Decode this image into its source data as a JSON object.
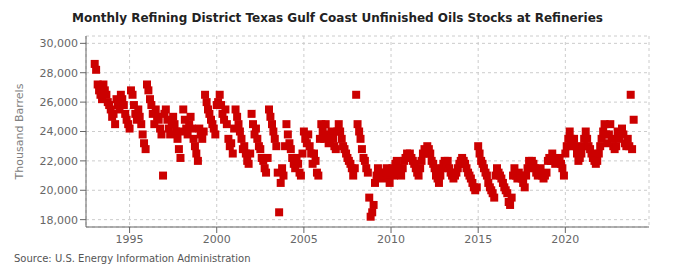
{
  "chart_data": {
    "type": "scatter",
    "title": "Monthly Refining District Texas Gulf Coast Unfinished Oils Stocks at Refineries",
    "y_label": "Thousand Barrels",
    "annotations": [
      "Source: U.S. Energy Information Administration"
    ],
    "color": "#cc0000",
    "marker": "square",
    "grid": true,
    "xlim": [
      1992.5,
      2024.8
    ],
    "xticks": [
      1995,
      2000,
      2005,
      2010,
      2015,
      2020
    ],
    "ylim": [
      17500,
      30500
    ],
    "yticks": [
      {
        "value": 18000,
        "label": "18,000"
      },
      {
        "value": 20000,
        "label": "20,000"
      },
      {
        "value": 22000,
        "label": "22,000"
      },
      {
        "value": 24000,
        "label": "24,000"
      },
      {
        "value": 26000,
        "label": "26,000"
      },
      {
        "value": 28000,
        "label": "28,000"
      },
      {
        "value": 30000,
        "label": "30,000"
      }
    ],
    "x": [
      1993.0,
      1993.08,
      1993.17,
      1993.25,
      1993.33,
      1993.42,
      1993.5,
      1993.58,
      1993.67,
      1993.75,
      1993.83,
      1993.92,
      1994.0,
      1994.08,
      1994.17,
      1994.25,
      1994.33,
      1994.42,
      1994.5,
      1994.58,
      1994.67,
      1994.75,
      1994.83,
      1994.92,
      1995.0,
      1995.08,
      1995.17,
      1995.25,
      1995.33,
      1995.42,
      1995.5,
      1995.58,
      1995.67,
      1995.75,
      1995.83,
      1995.92,
      1996.0,
      1996.08,
      1996.17,
      1996.25,
      1996.33,
      1996.42,
      1996.5,
      1996.58,
      1996.67,
      1996.75,
      1996.83,
      1996.92,
      1997.0,
      1997.08,
      1997.17,
      1997.25,
      1997.33,
      1997.42,
      1997.5,
      1997.58,
      1997.67,
      1997.75,
      1997.83,
      1997.92,
      1998.0,
      1998.08,
      1998.17,
      1998.25,
      1998.33,
      1998.42,
      1998.5,
      1998.58,
      1998.67,
      1998.75,
      1998.83,
      1998.92,
      1999.0,
      1999.08,
      1999.17,
      1999.25,
      1999.33,
      1999.42,
      1999.5,
      1999.58,
      1999.67,
      1999.75,
      1999.83,
      1999.92,
      2000.0,
      2000.08,
      2000.17,
      2000.25,
      2000.33,
      2000.42,
      2000.5,
      2000.58,
      2000.67,
      2000.75,
      2000.83,
      2000.92,
      2001.0,
      2001.08,
      2001.17,
      2001.25,
      2001.33,
      2001.42,
      2001.5,
      2001.58,
      2001.67,
      2001.75,
      2001.83,
      2001.92,
      2002.0,
      2002.08,
      2002.17,
      2002.25,
      2002.33,
      2002.42,
      2002.5,
      2002.58,
      2002.67,
      2002.75,
      2002.83,
      2002.92,
      2003.0,
      2003.08,
      2003.17,
      2003.25,
      2003.33,
      2003.42,
      2003.5,
      2003.58,
      2003.67,
      2003.75,
      2003.83,
      2003.92,
      2004.0,
      2004.08,
      2004.17,
      2004.25,
      2004.33,
      2004.42,
      2004.5,
      2004.58,
      2004.67,
      2004.75,
      2004.83,
      2004.92,
      2005.0,
      2005.08,
      2005.17,
      2005.25,
      2005.33,
      2005.42,
      2005.5,
      2005.58,
      2005.67,
      2005.75,
      2005.83,
      2005.92,
      2006.0,
      2006.08,
      2006.17,
      2006.25,
      2006.33,
      2006.42,
      2006.5,
      2006.58,
      2006.67,
      2006.75,
      2006.83,
      2006.92,
      2007.0,
      2007.08,
      2007.17,
      2007.25,
      2007.33,
      2007.42,
      2007.5,
      2007.58,
      2007.67,
      2007.75,
      2007.83,
      2007.92,
      2008.0,
      2008.08,
      2008.17,
      2008.25,
      2008.33,
      2008.42,
      2008.5,
      2008.58,
      2008.67,
      2008.75,
      2008.83,
      2008.92,
      2009.0,
      2009.08,
      2009.17,
      2009.25,
      2009.33,
      2009.42,
      2009.5,
      2009.58,
      2009.67,
      2009.75,
      2009.83,
      2009.92,
      2010.0,
      2010.08,
      2010.17,
      2010.25,
      2010.33,
      2010.42,
      2010.5,
      2010.58,
      2010.67,
      2010.75,
      2010.83,
      2010.92,
      2011.0,
      2011.08,
      2011.17,
      2011.25,
      2011.33,
      2011.42,
      2011.5,
      2011.58,
      2011.67,
      2011.75,
      2011.83,
      2011.92,
      2012.0,
      2012.08,
      2012.17,
      2012.25,
      2012.33,
      2012.42,
      2012.5,
      2012.58,
      2012.67,
      2012.75,
      2012.83,
      2012.92,
      2013.0,
      2013.08,
      2013.17,
      2013.25,
      2013.33,
      2013.42,
      2013.5,
      2013.58,
      2013.67,
      2013.75,
      2013.83,
      2013.92,
      2014.0,
      2014.08,
      2014.17,
      2014.25,
      2014.33,
      2014.42,
      2014.5,
      2014.58,
      2014.67,
      2014.75,
      2014.83,
      2014.92,
      2015.0,
      2015.08,
      2015.17,
      2015.25,
      2015.33,
      2015.42,
      2015.5,
      2015.58,
      2015.67,
      2015.75,
      2015.83,
      2015.92,
      2016.0,
      2016.08,
      2016.17,
      2016.25,
      2016.33,
      2016.42,
      2016.5,
      2016.58,
      2016.67,
      2016.75,
      2016.83,
      2016.92,
      2017.0,
      2017.08,
      2017.17,
      2017.25,
      2017.33,
      2017.42,
      2017.5,
      2017.58,
      2017.67,
      2017.75,
      2017.83,
      2017.92,
      2018.0,
      2018.08,
      2018.17,
      2018.25,
      2018.33,
      2018.42,
      2018.5,
      2018.58,
      2018.67,
      2018.75,
      2018.83,
      2018.92,
      2019.0,
      2019.08,
      2019.17,
      2019.25,
      2019.33,
      2019.42,
      2019.5,
      2019.58,
      2019.67,
      2019.75,
      2019.83,
      2019.92,
      2020.0,
      2020.08,
      2020.17,
      2020.25,
      2020.33,
      2020.42,
      2020.5,
      2020.58,
      2020.67,
      2020.75,
      2020.83,
      2020.92,
      2021.0,
      2021.08,
      2021.17,
      2021.25,
      2021.33,
      2021.42,
      2021.5,
      2021.58,
      2021.67,
      2021.75,
      2021.83,
      2021.92,
      2022.0,
      2022.08,
      2022.17,
      2022.25,
      2022.33,
      2022.42,
      2022.5,
      2022.58,
      2022.67,
      2022.75,
      2022.83,
      2022.92,
      2023.0,
      2023.08,
      2023.17,
      2023.25,
      2023.33,
      2023.42,
      2023.5,
      2023.58,
      2023.67,
      2023.75,
      2023.83,
      2023.92
    ],
    "values": [
      28600,
      28200,
      27200,
      26800,
      26500,
      26200,
      27200,
      26800,
      26500,
      26000,
      25800,
      25500,
      25000,
      25200,
      24500,
      26200,
      25800,
      25500,
      26500,
      26200,
      25800,
      25200,
      24800,
      24500,
      24200,
      26800,
      26500,
      25800,
      25200,
      24800,
      25500,
      25000,
      24500,
      23800,
      23200,
      22800,
      27200,
      26800,
      26200,
      25800,
      25200,
      24500,
      25500,
      25000,
      24800,
      24200,
      23800,
      21000,
      25200,
      25500,
      24800,
      24200,
      23800,
      24500,
      25000,
      24500,
      24000,
      23500,
      22800,
      22200,
      24000,
      25500,
      24800,
      24200,
      23800,
      24500,
      25000,
      24200,
      23500,
      23000,
      22500,
      22000,
      24200,
      23800,
      23500,
      24000,
      26500,
      26000,
      25500,
      25200,
      24800,
      24500,
      24200,
      23800,
      25800,
      26000,
      26500,
      25800,
      25200,
      24800,
      25500,
      24500,
      23500,
      23000,
      23200,
      22500,
      24200,
      25500,
      25000,
      24500,
      24000,
      23500,
      22800,
      23000,
      22500,
      22000,
      21800,
      22500,
      25200,
      24500,
      23800,
      24200,
      23500,
      23000,
      22800,
      22200,
      22000,
      21500,
      21200,
      22200,
      25500,
      25000,
      24500,
      24000,
      23500,
      23000,
      21200,
      18500,
      20500,
      21500,
      21000,
      23000,
      24500,
      23800,
      23200,
      22800,
      22200,
      21800,
      21500,
      22200,
      21800,
      21200,
      21000,
      22500,
      24000,
      23500,
      23200,
      23800,
      23000,
      22500,
      21800,
      22500,
      22000,
      21200,
      21000,
      23500,
      24500,
      24000,
      23500,
      24500,
      23800,
      23200,
      23500,
      24000,
      23500,
      23000,
      22800,
      24000,
      24500,
      24000,
      23500,
      23000,
      22800,
      22500,
      22200,
      22000,
      21800,
      21500,
      21000,
      21500,
      26500,
      24500,
      24000,
      23500,
      22800,
      22200,
      22000,
      21500,
      21200,
      19500,
      18200,
      18500,
      19000,
      20500,
      21000,
      21500,
      21200,
      21000,
      20800,
      21000,
      21200,
      21500,
      21000,
      20500,
      21200,
      21500,
      21000,
      21800,
      22000,
      21500,
      21200,
      21000,
      21500,
      22000,
      22200,
      22500,
      22200,
      22500,
      22200,
      22000,
      21800,
      21500,
      21200,
      21000,
      21500,
      22000,
      22500,
      22800,
      22500,
      23000,
      22800,
      22500,
      22000,
      21800,
      21500,
      21000,
      20800,
      20500,
      21000,
      21500,
      21800,
      22000,
      21800,
      22000,
      21500,
      21200,
      21000,
      20800,
      21000,
      21200,
      21500,
      21800,
      22000,
      22200,
      22000,
      21800,
      21500,
      21200,
      21000,
      20800,
      20500,
      20200,
      20000,
      20200,
      23000,
      22500,
      22000,
      21800,
      21500,
      21200,
      21000,
      20500,
      20200,
      20000,
      19800,
      19500,
      21000,
      21500,
      21200,
      21000,
      20800,
      20500,
      20200,
      20000,
      19800,
      19200,
      19000,
      19500,
      21000,
      21500,
      21000,
      20800,
      21200,
      21000,
      20800,
      20500,
      20200,
      21000,
      21500,
      22000,
      21800,
      22000,
      21800,
      21500,
      21200,
      21000,
      21200,
      21500,
      21000,
      20800,
      21000,
      21200,
      22000,
      22200,
      22000,
      22500,
      22000,
      21800,
      22000,
      22200,
      22000,
      21800,
      21500,
      21000,
      22500,
      23000,
      23500,
      24000,
      23500,
      23000,
      23500,
      23000,
      22500,
      22000,
      22200,
      22500,
      23000,
      23500,
      24000,
      23500,
      23000,
      22800,
      22500,
      22200,
      22000,
      21800,
      22000,
      22500,
      23000,
      23500,
      24000,
      24500,
      23800,
      23200,
      23800,
      24500,
      23500,
      23000,
      22800,
      23000,
      24000,
      23500,
      23800,
      24200,
      23800,
      23200,
      23000,
      23500,
      23000,
      26500,
      22800,
      24800
    ]
  }
}
